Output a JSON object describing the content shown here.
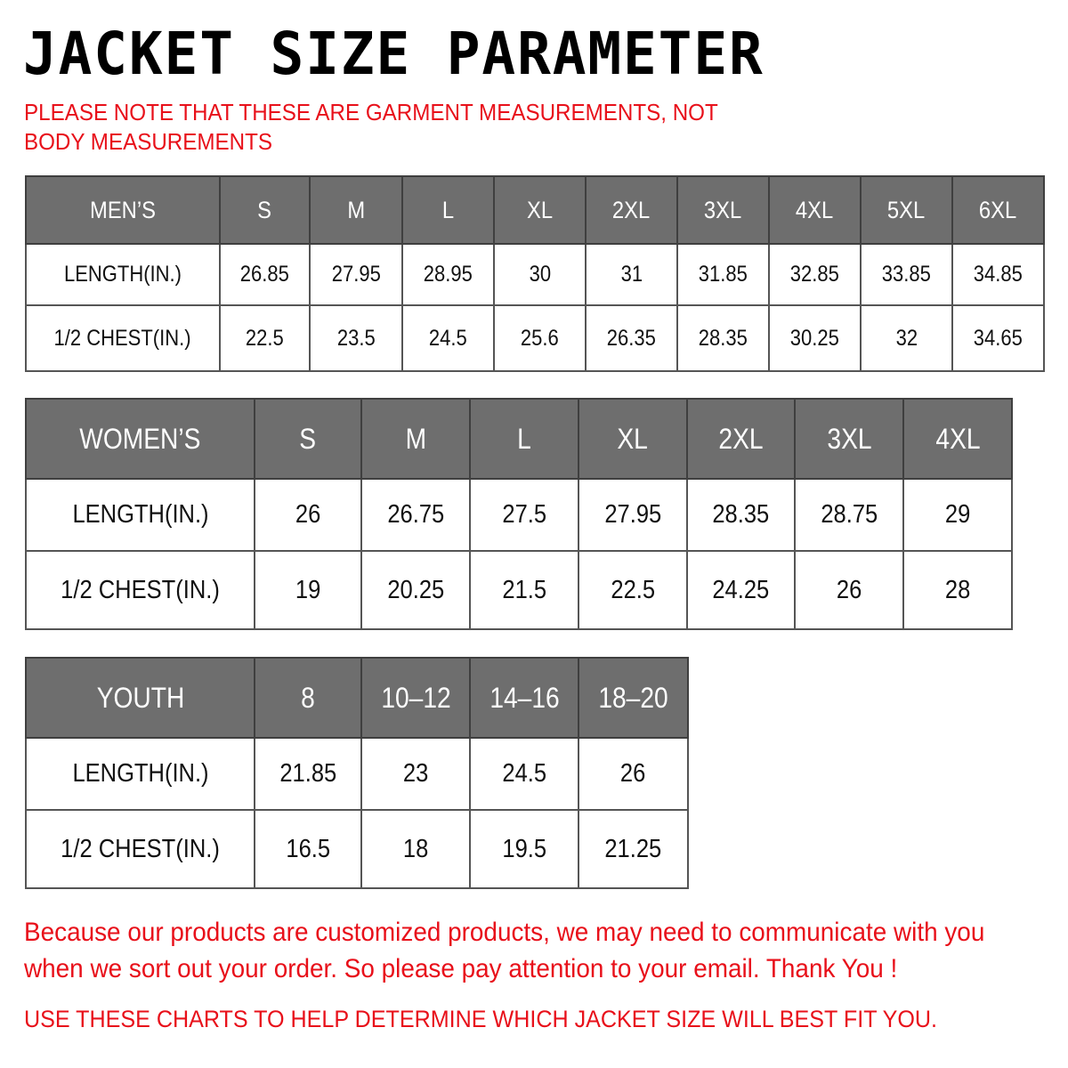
{
  "title": "JACKET  SIZE  PARAMETER",
  "note": "PLEASE NOTE THAT THESE ARE GARMENT MEASUREMENTS, NOT BODY MEASUREMENTS",
  "tables": [
    {
      "id": "men",
      "header": [
        "MEN’S",
        "S",
        "M",
        "L",
        "XL",
        "2XL",
        "3XL",
        "4XL",
        "5XL",
        "6XL"
      ],
      "rows": [
        [
          "LENGTH(IN.)",
          "26.85",
          "27.95",
          "28.95",
          "30",
          "31",
          "31.85",
          "32.85",
          "33.85",
          "34.85"
        ],
        [
          "1/2 CHEST(IN.)",
          "22.5",
          "23.5",
          "24.5",
          "25.6",
          "26.35",
          "28.35",
          "30.25",
          "32",
          "34.65"
        ]
      ]
    },
    {
      "id": "women",
      "header": [
        "WOMEN’S",
        "S",
        "M",
        "L",
        "XL",
        "2XL",
        "3XL",
        "4XL"
      ],
      "rows": [
        [
          "LENGTH(IN.)",
          "26",
          "26.75",
          "27.5",
          "27.95",
          "28.35",
          "28.75",
          "29"
        ],
        [
          "1/2 CHEST(IN.)",
          "19",
          "20.25",
          "21.5",
          "22.5",
          "24.25",
          "26",
          "28"
        ]
      ]
    },
    {
      "id": "youth",
      "header": [
        "YOUTH",
        "8",
        "10–12",
        "14–16",
        "18–20"
      ],
      "rows": [
        [
          "LENGTH(IN.)",
          "21.85",
          "23",
          "24.5",
          "26"
        ],
        [
          "1/2 CHEST(IN.)",
          "16.5",
          "18",
          "19.5",
          "21.25"
        ]
      ]
    }
  ],
  "footer_line1": "Because our products are customized products, we may need to communicate with you",
  "footer_line2": "when we sort out your order. So please pay attention to your email. Thank You !",
  "footer_note": "USE THESE CHARTS TO HELP DETERMINE WHICH JACKET SIZE WILL BEST FIT YOU.",
  "colors": {
    "header_bg": "#6e6e6e",
    "accent_red": "#e8101a"
  }
}
